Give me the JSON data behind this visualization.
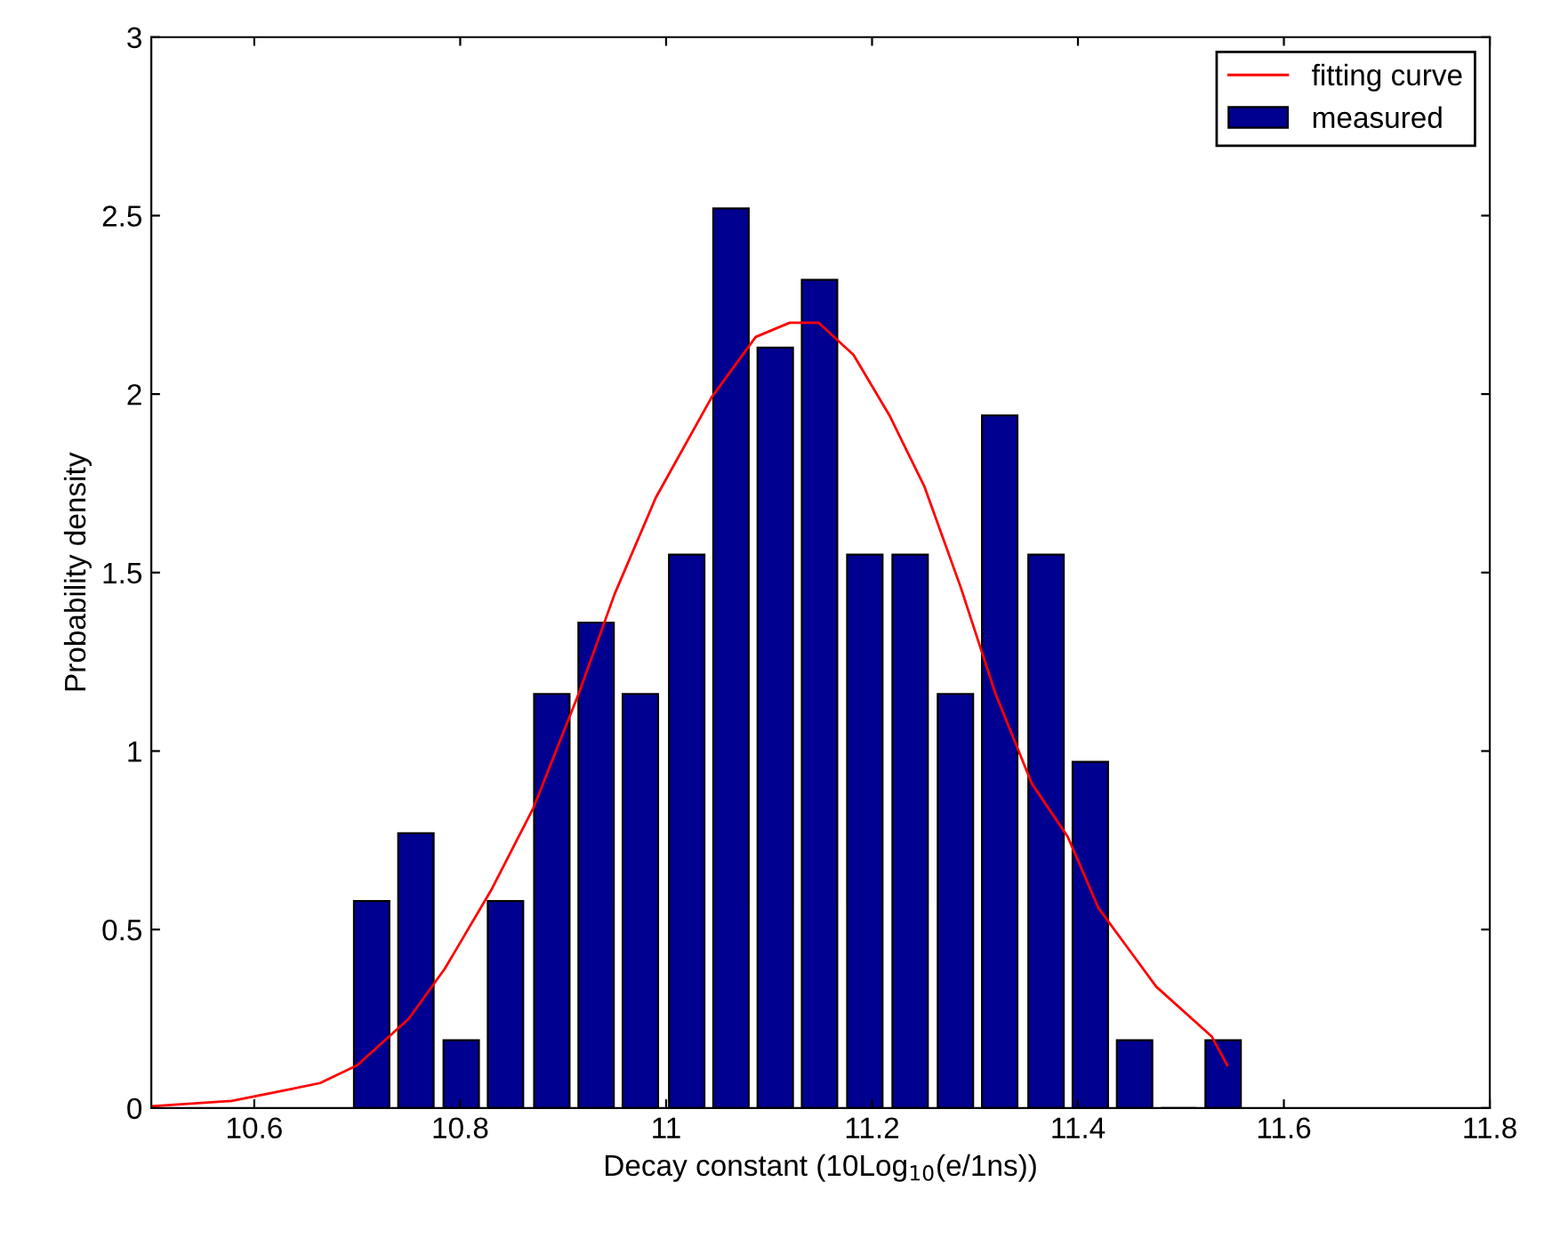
{
  "chart_data": {
    "type": "bar",
    "xlabel": "Decay constant (10Log$_{10}$(e/1ns))",
    "ylabel": "Probability density",
    "xlim": [
      10.5,
      11.8
    ],
    "xticks": [
      10.6,
      10.8,
      11,
      11.2,
      11.4,
      11.6,
      11.8
    ],
    "ylim": [
      0,
      3
    ],
    "yticks": [
      0,
      0.5,
      1,
      1.5,
      2,
      2.5,
      3
    ],
    "grid": false,
    "legend": "top right",
    "series": [
      {
        "name": "fitting curve",
        "type": "line",
        "color": "#ff0000",
        "x": [
          10.5,
          10.578,
          10.63,
          10.664,
          10.7,
          10.75,
          10.785,
          10.83,
          10.871,
          10.915,
          10.95,
          10.99,
          11.044,
          11.087,
          11.12,
          11.148,
          11.182,
          11.217,
          11.251,
          11.286,
          11.32,
          11.355,
          11.39,
          11.42,
          11.476,
          11.53,
          11.545
        ],
        "values": [
          0.005,
          0.02,
          0.05,
          0.07,
          0.12,
          0.25,
          0.39,
          0.61,
          0.84,
          1.16,
          1.44,
          1.71,
          1.99,
          2.16,
          2.2,
          2.2,
          2.11,
          1.94,
          1.74,
          1.46,
          1.16,
          0.91,
          0.76,
          0.56,
          0.34,
          0.2,
          0.12
        ]
      },
      {
        "name": "measured",
        "color": "#000090",
        "x": [
          10.714,
          10.757,
          10.801,
          10.844,
          10.889,
          10.932,
          10.975,
          11.02,
          11.063,
          11.106,
          11.149,
          11.193,
          11.237,
          11.281,
          11.324,
          11.369,
          11.412,
          11.455,
          11.498,
          11.541
        ],
        "values": [
          0.58,
          0.77,
          0.19,
          0.58,
          1.16,
          1.36,
          1.16,
          1.55,
          2.52,
          2.13,
          2.32,
          1.55,
          1.55,
          1.16,
          1.94,
          1.55,
          0.97,
          0.19,
          0,
          0.19
        ]
      }
    ]
  }
}
